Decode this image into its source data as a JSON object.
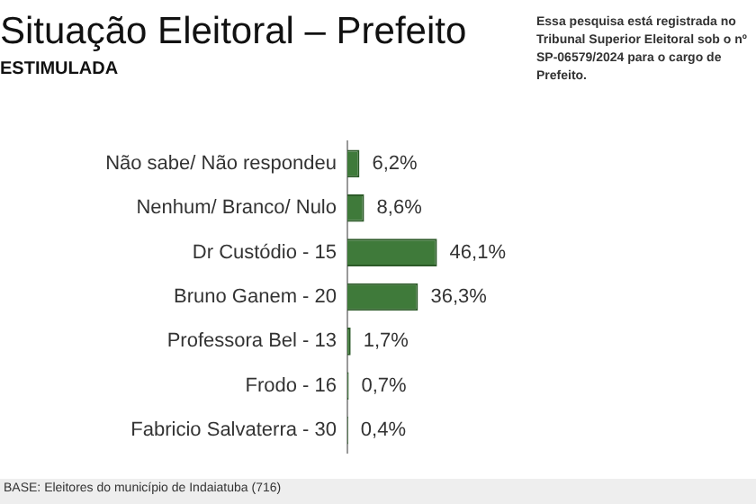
{
  "chart_data": {
    "type": "bar",
    "orientation": "horizontal",
    "title": "Situação Eleitoral – Prefeito",
    "subtitle": "ESTIMULADA",
    "categories": [
      "Não sabe/ Não respondeu",
      "Nenhum/ Branco/ Nulo",
      "Dr Custódio - 15",
      "Bruno Ganem - 20",
      "Professora Bel - 13",
      "Frodo - 16",
      "Fabricio Salvaterra - 30"
    ],
    "values": [
      6.2,
      8.6,
      46.1,
      36.3,
      1.7,
      0.7,
      0.4
    ],
    "value_labels": [
      "6,2%",
      "8,6%",
      "46,1%",
      "36,3%",
      "1,7%",
      "0,7%",
      "0,4%"
    ],
    "color": "#3f7a3a",
    "tick_labels": "y",
    "legend": false,
    "annotations": [
      "Essa pesquisa está registrada no Tribunal Superior Eleitoral sob o nº SP-06579/2024 para o cargo de Prefeito.",
      "BASE: Eleitores do município de Indaiatuba (716)"
    ]
  }
}
